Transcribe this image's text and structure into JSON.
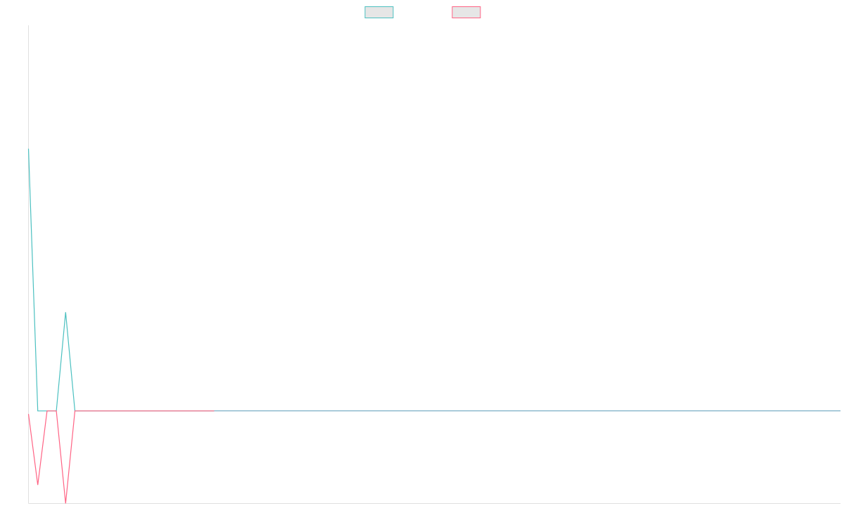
{
  "chart_data": {
    "type": "line",
    "title": "",
    "xlabel": "",
    "ylabel": "",
    "legend_position": "top-center",
    "grid": false,
    "x": [
      0,
      1,
      2,
      3,
      4,
      5,
      6,
      7,
      8,
      9,
      10,
      11,
      12,
      13,
      14,
      15,
      16,
      17,
      18,
      19,
      20
    ],
    "xlim": [
      0,
      20
    ],
    "ylim": [
      -0.55,
      1.0
    ],
    "baseline_value": -0.25,
    "baseline_color": "#5a9bb8",
    "series": [
      {
        "name": "",
        "color": "#4bc0c0",
        "fill": "#e6e6e6",
        "values": [
          0.6,
          -0.25,
          -0.25,
          -0.25,
          0.07,
          -0.25,
          -0.25,
          -0.25,
          -0.25,
          -0.25,
          -0.25,
          -0.25,
          -0.25,
          -0.25,
          -0.25,
          -0.25,
          -0.25,
          -0.25,
          -0.25,
          -0.25,
          -0.25
        ]
      },
      {
        "name": "",
        "color": "#ff6384",
        "fill": "#e6e6e6",
        "values": [
          -0.26,
          -0.49,
          -0.25,
          -0.25,
          -0.55,
          -0.25,
          -0.25,
          -0.25,
          -0.25,
          -0.25,
          -0.25,
          -0.25,
          -0.25,
          -0.25,
          -0.25,
          -0.25,
          -0.25,
          -0.25,
          -0.25,
          -0.25,
          -0.25
        ]
      }
    ]
  }
}
